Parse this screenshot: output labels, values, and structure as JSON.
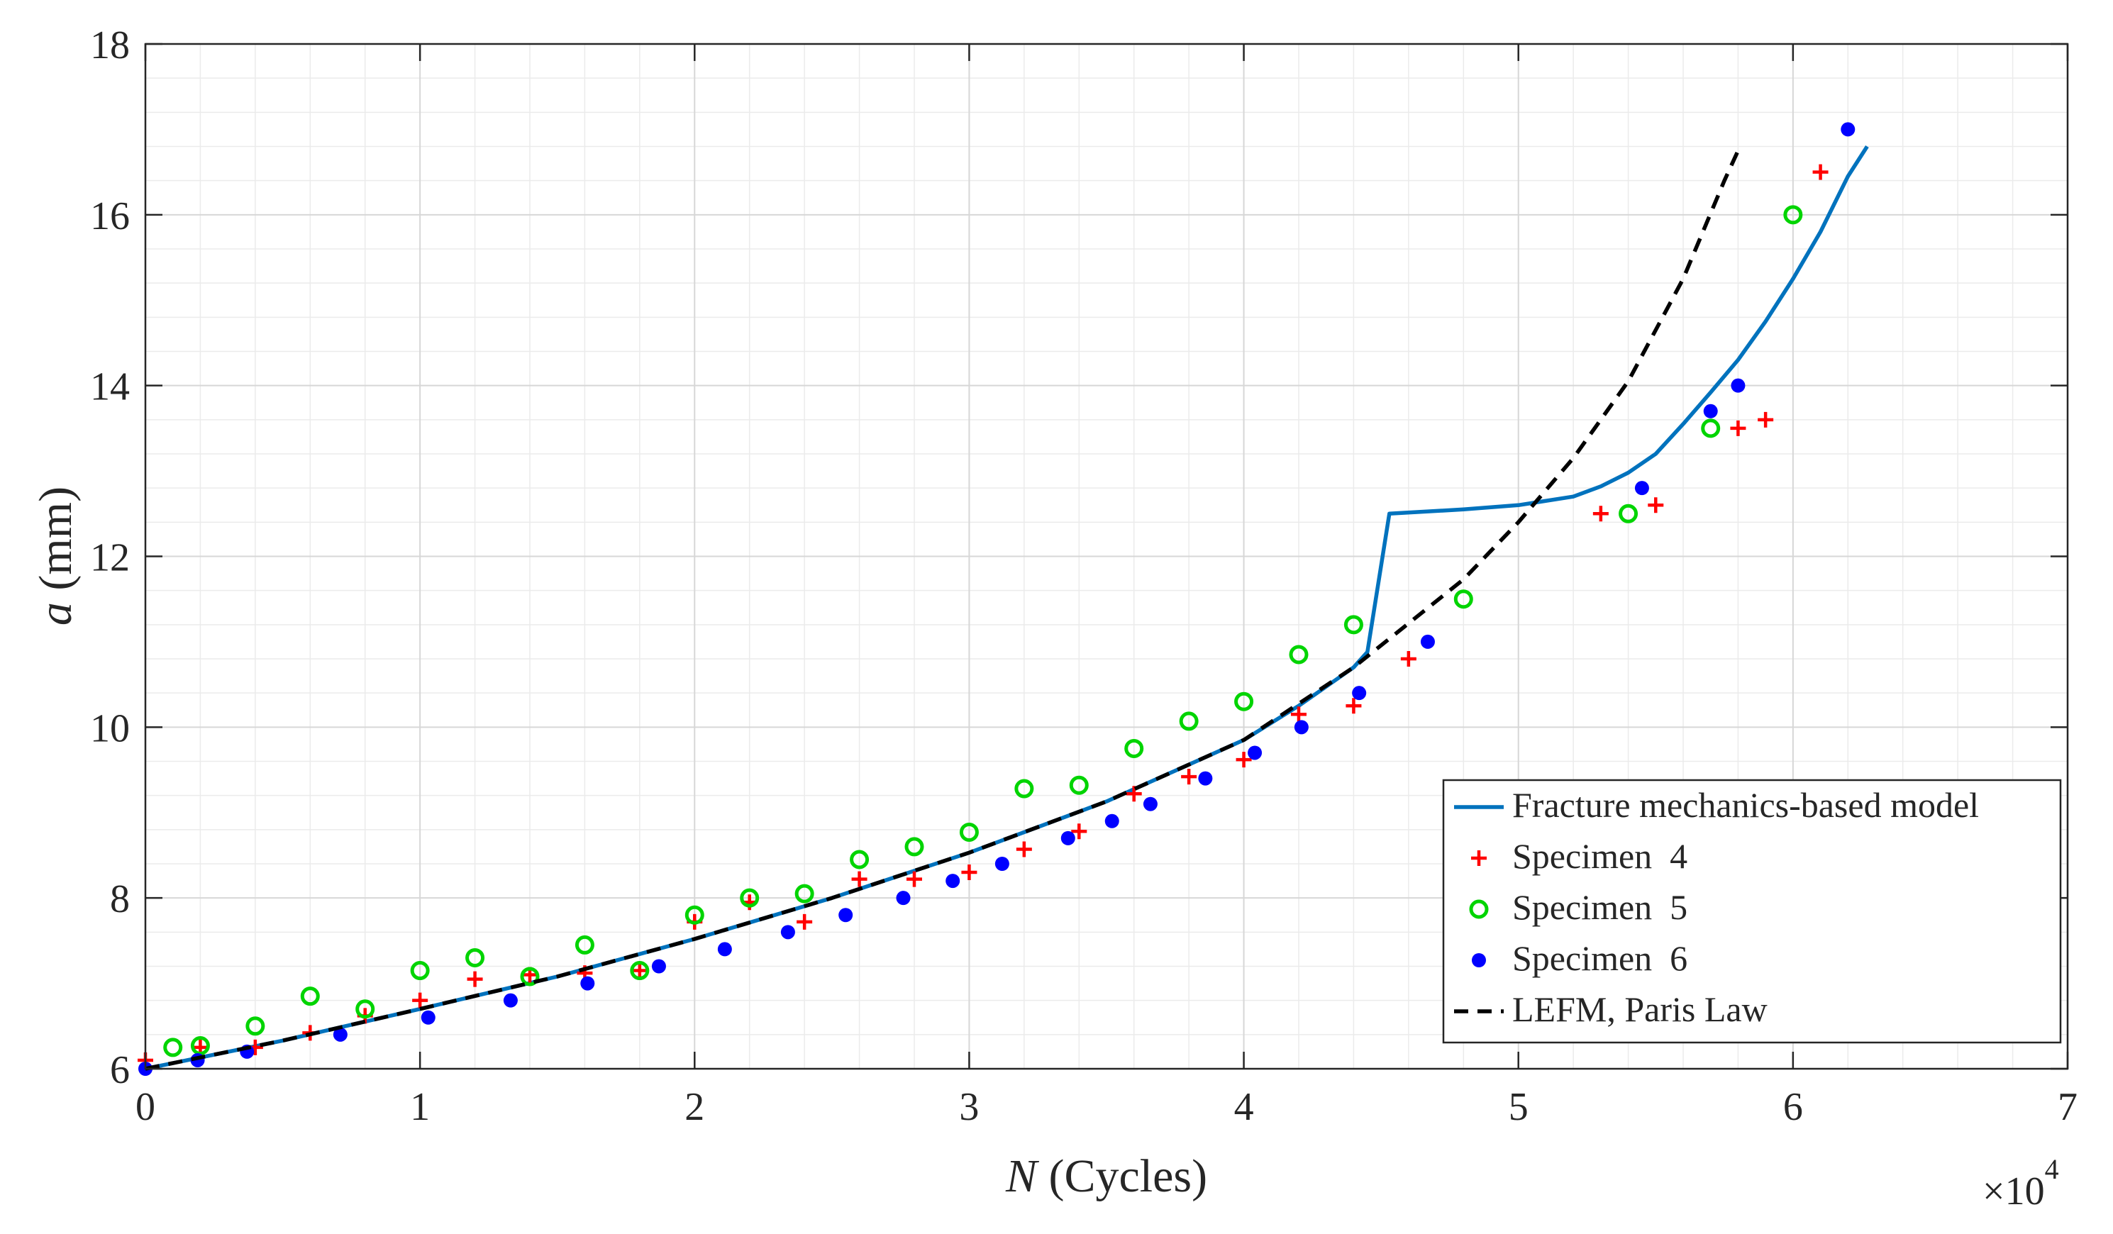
{
  "chart_data": {
    "type": "line",
    "title": "",
    "xlabel": {
      "italic": "N",
      "rest": " (Cycles)"
    },
    "ylabel": {
      "italic": "a",
      "rest": " (mm)"
    },
    "x_multiplier": {
      "prefix": "×10",
      "exponent": "4"
    },
    "xlim": [
      0,
      7
    ],
    "ylim": [
      6,
      18
    ],
    "x_ticks": [
      0,
      1,
      2,
      3,
      4,
      5,
      6,
      7
    ],
    "x_tick_labels": [
      "0",
      "1",
      "2",
      "3",
      "4",
      "5",
      "6",
      "7"
    ],
    "y_ticks": [
      6,
      8,
      10,
      12,
      14,
      16,
      18
    ],
    "y_tick_labels": [
      "6",
      "8",
      "10",
      "12",
      "14",
      "16",
      "18"
    ],
    "grid": true,
    "minor_grid": true,
    "legend_position": "bottom-right",
    "series": [
      {
        "name": "Fracture mechanics-based model",
        "kind": "line",
        "color": "#0072BD",
        "dash": "solid",
        "x": [
          0,
          0.5,
          1,
          1.5,
          2,
          2.5,
          3,
          3.5,
          4,
          4.2,
          4.4,
          4.45,
          4.53,
          4.8,
          5.0,
          5.2,
          5.3,
          5.4,
          5.5,
          5.6,
          5.7,
          5.8,
          5.9,
          6.0,
          6.1,
          6.2,
          6.27
        ],
        "y": [
          6.0,
          6.33,
          6.7,
          7.08,
          7.52,
          8.0,
          8.53,
          9.13,
          9.85,
          10.25,
          10.7,
          10.88,
          12.5,
          12.55,
          12.6,
          12.7,
          12.82,
          12.98,
          13.2,
          13.55,
          13.92,
          14.3,
          14.75,
          15.25,
          15.8,
          16.45,
          16.8
        ]
      },
      {
        "name": "Specimen  4",
        "kind": "marker",
        "marker": "plus",
        "color": "#FF0000",
        "x": [
          0,
          0.2,
          0.4,
          0.6,
          0.8,
          1.0,
          1.2,
          1.4,
          1.6,
          1.8,
          2.0,
          2.2,
          2.4,
          2.6,
          2.8,
          3.0,
          3.2,
          3.4,
          3.6,
          3.8,
          4.0,
          4.2,
          4.4,
          4.6,
          5.3,
          5.5,
          5.8,
          5.9,
          6.1
        ],
        "y": [
          6.1,
          6.25,
          6.25,
          6.42,
          6.62,
          6.8,
          7.05,
          7.1,
          7.12,
          7.15,
          7.72,
          7.95,
          7.72,
          8.22,
          8.22,
          8.3,
          8.57,
          8.78,
          9.22,
          9.42,
          9.62,
          10.15,
          10.25,
          10.8,
          12.5,
          12.6,
          13.5,
          13.6,
          16.5
        ]
      },
      {
        "name": "Specimen  5",
        "kind": "marker",
        "marker": "circle-open",
        "color": "#00D400",
        "x": [
          0.1,
          0.2,
          0.4,
          0.6,
          0.8,
          1.0,
          1.2,
          1.4,
          1.6,
          1.8,
          2.0,
          2.2,
          2.4,
          2.6,
          2.8,
          3.0,
          3.2,
          3.4,
          3.6,
          3.8,
          4.0,
          4.2,
          4.4,
          4.8,
          5.4,
          5.7,
          6.0
        ],
        "y": [
          6.25,
          6.27,
          6.5,
          6.85,
          6.7,
          7.15,
          7.3,
          7.08,
          7.45,
          7.15,
          7.8,
          8.0,
          8.05,
          8.45,
          8.6,
          8.77,
          9.28,
          9.32,
          9.75,
          10.07,
          10.3,
          10.85,
          11.2,
          11.5,
          12.5,
          13.5,
          16.0
        ]
      },
      {
        "name": "Specimen  6",
        "kind": "marker",
        "marker": "circle-filled",
        "color": "#0000FF",
        "x": [
          0,
          0.19,
          0.37,
          0.71,
          1.03,
          1.33,
          1.61,
          1.87,
          2.11,
          2.34,
          2.55,
          2.76,
          2.94,
          3.12,
          3.36,
          3.52,
          3.66,
          3.86,
          4.04,
          4.21,
          4.42,
          4.67,
          5.45,
          5.7,
          5.8,
          6.2
        ],
        "y": [
          6.0,
          6.1,
          6.2,
          6.4,
          6.6,
          6.8,
          7.0,
          7.2,
          7.4,
          7.6,
          7.8,
          8.0,
          8.2,
          8.4,
          8.7,
          8.9,
          9.1,
          9.4,
          9.7,
          10.0,
          10.4,
          11.0,
          12.8,
          13.7,
          14.0,
          17.0
        ]
      },
      {
        "name": "LEFM, Paris Law",
        "kind": "line",
        "color": "#000000",
        "dash": "dashed",
        "x": [
          0,
          0.5,
          1,
          1.5,
          2,
          2.5,
          3,
          3.5,
          4,
          4.4,
          4.8,
          5.0,
          5.2,
          5.4,
          5.6,
          5.75,
          5.8
        ],
        "y": [
          6.0,
          6.33,
          6.7,
          7.08,
          7.52,
          8.0,
          8.53,
          9.13,
          9.85,
          10.7,
          11.73,
          12.4,
          13.15,
          14.05,
          15.25,
          16.4,
          16.75
        ]
      }
    ]
  }
}
